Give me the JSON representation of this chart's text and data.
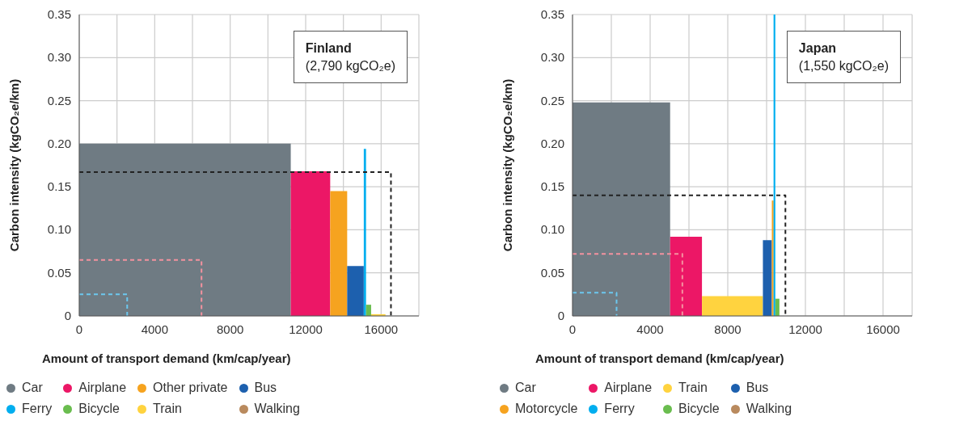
{
  "chart_data": [
    {
      "type": "area",
      "title": "Finland",
      "subtitle": "(2,790 kgCO₂e)",
      "xlabel": "Amount of transport demand (km/cap/year)",
      "ylabel": "Carbon intensity (kgCO₂e/km)",
      "xlim": [
        0,
        18000
      ],
      "xticks": [
        0,
        {
          "value": 2000,
          "label": null
        },
        4000,
        {
          "value": 6000,
          "label": null
        },
        8000,
        {
          "value": 10000,
          "label": null
        },
        12000,
        {
          "value": 14000,
          "label": null
        },
        16000
      ],
      "ylim": [
        0,
        0.35
      ],
      "yticks": [
        0,
        0.05,
        {
          "value": 0.1,
          "label": "0.10"
        },
        0.15,
        {
          "value": 0.2,
          "label": "0.20"
        },
        0.25,
        {
          "value": 0.3,
          "label": "0.30"
        },
        0.35
      ],
      "grid": true,
      "legend": "bottom",
      "series": [
        {
          "name": "Car",
          "color": "#6f7b83",
          "x": [
            0,
            11210
          ],
          "values": [
            0.2,
            0.2
          ]
        },
        {
          "name": "Airplane",
          "color": "#ec1766",
          "x": [
            11210,
            13300
          ],
          "values": [
            0.168,
            0.168
          ]
        },
        {
          "name": "Other private",
          "color": "#f6a31f",
          "x": [
            13300,
            14200
          ],
          "values": [
            0.145,
            0.145
          ]
        },
        {
          "name": "Bus",
          "color": "#1d60ae",
          "x": [
            14200,
            15080
          ],
          "values": [
            0.058,
            0.058
          ]
        },
        {
          "name": "Ferry",
          "color": "#00aeef",
          "x": [
            15080,
            15200
          ],
          "values": [
            0.194,
            0.194
          ]
        },
        {
          "name": "Bicycle",
          "color": "#6abd4f",
          "x": [
            15200,
            15470
          ],
          "values": [
            0.013,
            0.013
          ]
        },
        {
          "name": "Train",
          "color": "#ffd33f",
          "x": [
            15470,
            16230
          ],
          "values": [
            0.002,
            0.002
          ]
        },
        {
          "name": "Walking",
          "color": "#b98a5e"
        },
        {
          "type": "line",
          "line_style": "dashed",
          "color": "#222222",
          "x": [
            0,
            16520,
            16520
          ],
          "values": [
            0.167,
            0.167,
            0
          ]
        },
        {
          "type": "line",
          "line_style": "dashed",
          "color": "#f4929f",
          "x": [
            0,
            6480,
            6480
          ],
          "values": [
            0.065,
            0.065,
            0
          ]
        },
        {
          "type": "line",
          "line_style": "dashed",
          "color": "#6cc8ef",
          "x": [
            0,
            2540,
            2540
          ],
          "values": [
            0.025,
            0.025,
            0
          ]
        }
      ]
    },
    {
      "type": "area",
      "title": "Japan",
      "subtitle": "(1,550 kgCO₂e)",
      "xlabel": "Amount of transport demand (km/cap/year)",
      "ylabel": "Carbon intensity (kgCO₂e/km)",
      "xlim": [
        0,
        17500
      ],
      "xticks": [
        0,
        {
          "value": 2000,
          "label": null
        },
        4000,
        {
          "value": 6000,
          "label": null
        },
        8000,
        {
          "value": 10000,
          "label": null
        },
        12000,
        {
          "value": 14000,
          "label": null
        },
        16000
      ],
      "ylim": [
        0,
        0.35
      ],
      "yticks": [
        0,
        0.05,
        {
          "value": 0.1,
          "label": "0.10"
        },
        0.15,
        {
          "value": 0.2,
          "label": "0.20"
        },
        0.25,
        {
          "value": 0.3,
          "label": "0.30"
        },
        0.35
      ],
      "grid": true,
      "legend": "bottom",
      "series": [
        {
          "name": "Car",
          "color": "#6f7b83",
          "x": [
            0,
            5030
          ],
          "values": [
            0.248,
            0.248
          ]
        },
        {
          "name": "Airplane",
          "color": "#ec1766",
          "x": [
            5030,
            6670
          ],
          "values": [
            0.092,
            0.092
          ]
        },
        {
          "name": "Train",
          "color": "#ffd33f",
          "x": [
            6670,
            9810
          ],
          "values": [
            0.023,
            0.023
          ]
        },
        {
          "name": "Bus",
          "color": "#1d60ae",
          "x": [
            9810,
            10270
          ],
          "values": [
            0.088,
            0.088
          ]
        },
        {
          "name": "Motorcycle",
          "color": "#f6a31f",
          "x": [
            10270,
            10360
          ],
          "values": [
            0.134,
            0.134
          ]
        },
        {
          "name": "Ferry",
          "color": "#00aeef",
          "x": [
            10360,
            10450
          ],
          "values": [
            0.35,
            0.35
          ]
        },
        {
          "name": "Bicycle",
          "color": "#6abd4f",
          "x": [
            10450,
            10660
          ],
          "values": [
            0.02,
            0.02
          ]
        },
        {
          "name": "Walking",
          "color": "#b98a5e"
        },
        {
          "type": "line",
          "line_style": "dashed",
          "color": "#222222",
          "x": [
            0,
            10970,
            10970
          ],
          "values": [
            0.14,
            0.14,
            0
          ]
        },
        {
          "type": "line",
          "line_style": "dashed",
          "color": "#f4929f",
          "x": [
            0,
            5660,
            5660
          ],
          "values": [
            0.072,
            0.072,
            0
          ]
        },
        {
          "type": "line",
          "line_style": "dashed",
          "color": "#6cc8ef",
          "x": [
            0,
            2270,
            2270
          ],
          "values": [
            0.027,
            0.027,
            0
          ]
        }
      ]
    }
  ]
}
